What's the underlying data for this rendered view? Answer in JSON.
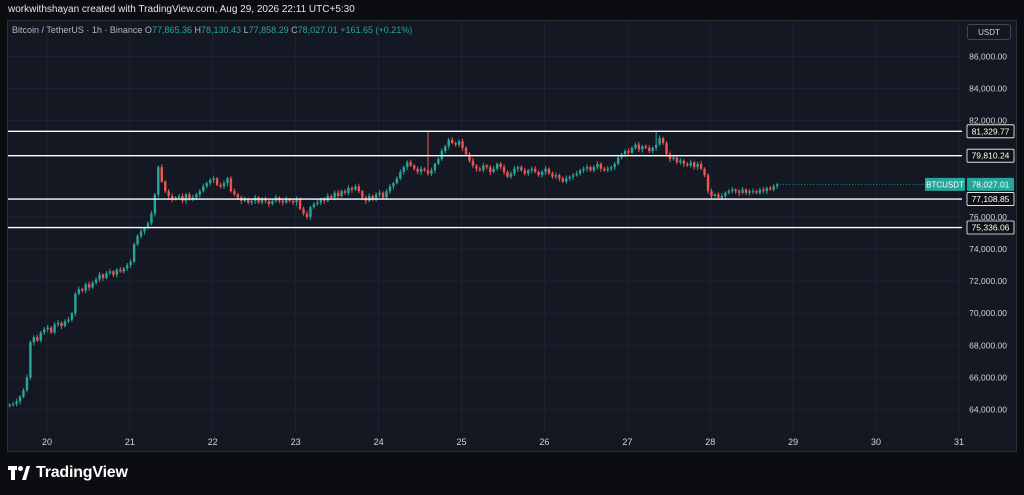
{
  "header": {
    "text": "workwithshayan created with TradingView.com, Aug 29, 2026 22:11 UTC+5:30"
  },
  "legend": {
    "symbol": "Bitcoin / TetherUS · 1h · Binance",
    "open_label": "O",
    "open": "77,865.36",
    "high_label": "H",
    "high": "78,130.43",
    "low_label": "L",
    "low": "77,858.29",
    "close_label": "C",
    "close": "78,027.01",
    "change": "+161.65 (+0.21%)"
  },
  "currency_button": "USDT",
  "footer": {
    "brand": "TradingView"
  },
  "colors": {
    "up": "#26a69a",
    "down": "#ef5350",
    "background": "#141823",
    "grid": "#1e2230",
    "level_line": "#ffffff",
    "price_tag": "#26a69a"
  },
  "chart_data": {
    "type": "candlestick",
    "symbol_tag": "BTCUSDT",
    "last_price": "78,027.01",
    "ylim": [
      62600,
      88200
    ],
    "y_ticks": [
      {
        "value": 64000,
        "label": "64,000.00"
      },
      {
        "value": 66000,
        "label": "66,000.00"
      },
      {
        "value": 68000,
        "label": "68,000.00"
      },
      {
        "value": 70000,
        "label": "70,000.00"
      },
      {
        "value": 72000,
        "label": "72,000.00"
      },
      {
        "value": 74000,
        "label": "74,000.00"
      },
      {
        "value": 76000,
        "label": "76,000.00"
      },
      {
        "value": 82000,
        "label": "82,000.00"
      },
      {
        "value": 84000,
        "label": "84,000.00"
      },
      {
        "value": 86000,
        "label": "86,000.00"
      }
    ],
    "x_ticks": [
      {
        "day": 20,
        "label": "20"
      },
      {
        "day": 21,
        "label": "21"
      },
      {
        "day": 22,
        "label": "22"
      },
      {
        "day": 23,
        "label": "23"
      },
      {
        "day": 24,
        "label": "24"
      },
      {
        "day": 25,
        "label": "25"
      },
      {
        "day": 26,
        "label": "26"
      },
      {
        "day": 27,
        "label": "27"
      },
      {
        "day": 28,
        "label": "28"
      },
      {
        "day": 29,
        "label": "29"
      },
      {
        "day": 30,
        "label": "30"
      },
      {
        "day": 31,
        "label": "31"
      }
    ],
    "xlim_days": [
      19.53,
      31.7
    ],
    "levels": [
      {
        "value": 81329.77,
        "label": "81,329.77"
      },
      {
        "value": 79810.24,
        "label": "79,810.24"
      },
      {
        "value": 77108.85,
        "label": "77,108.85"
      },
      {
        "value": 75336.06,
        "label": "75,336.06"
      }
    ],
    "series": {
      "start_day": 19.55,
      "candle_step_days": 0.0417,
      "close": [
        64300,
        64350,
        64500,
        64800,
        65200,
        66000,
        68200,
        68500,
        68300,
        68800,
        69000,
        69100,
        68800,
        69300,
        69400,
        69200,
        69500,
        69600,
        70000,
        71200,
        71500,
        71400,
        71800,
        71600,
        71900,
        72100,
        72400,
        72200,
        72500,
        72600,
        72400,
        72700,
        72600,
        72800,
        73000,
        73200,
        74300,
        74800,
        75100,
        75300,
        75600,
        76200,
        77400,
        79100,
        78200,
        77600,
        77300,
        77100,
        77200,
        77300,
        77000,
        77400,
        77100,
        77200,
        77400,
        77600,
        77900,
        78100,
        78300,
        78400,
        78000,
        77900,
        78100,
        78400,
        77600,
        77400,
        77200,
        77000,
        77100,
        76900,
        77000,
        77200,
        76900,
        77100,
        77000,
        76800,
        77000,
        77200,
        77000,
        76900,
        77100,
        77000,
        76900,
        77100,
        76500,
        76200,
        76000,
        76600,
        76800,
        76900,
        77100,
        77000,
        77300,
        77200,
        77500,
        77300,
        77600,
        77500,
        77800,
        77700,
        77900,
        77600,
        77200,
        77000,
        77300,
        77100,
        77400,
        77500,
        77200,
        77600,
        77900,
        78100,
        78400,
        78800,
        79100,
        79400,
        79200,
        79000,
        78800,
        79000,
        78900,
        78700,
        78900,
        79300,
        79600,
        80100,
        80400,
        80800,
        80600,
        80500,
        80700,
        80300,
        79900,
        79500,
        79200,
        79000,
        78900,
        79200,
        79100,
        78800,
        79000,
        79300,
        79100,
        78800,
        78500,
        78700,
        79000,
        79100,
        78900,
        78700,
        78900,
        79000,
        78800,
        78600,
        78800,
        79000,
        78700,
        78500,
        78600,
        78400,
        78200,
        78400,
        78500,
        78600,
        78700,
        78900,
        79000,
        79100,
        78900,
        79100,
        79300,
        79000,
        78900,
        79000,
        79100,
        79300,
        79700,
        79900,
        80100,
        80000,
        80300,
        80500,
        80200,
        80400,
        80300,
        80100,
        80300,
        80500,
        80900,
        80600,
        79900,
        79600,
        79700,
        79400,
        79500,
        79300,
        79200,
        79400,
        79100,
        79300,
        79000,
        78600,
        77600,
        77300,
        77400,
        77200,
        77300,
        77500,
        77600,
        77700,
        77600,
        77500,
        77700,
        77500,
        77600,
        77600,
        77500,
        77700,
        77600,
        77800,
        77700,
        77900,
        78027
      ],
      "spikes": {
        "43": 79200,
        "121": 81329,
        "187": 81329
      }
    }
  }
}
